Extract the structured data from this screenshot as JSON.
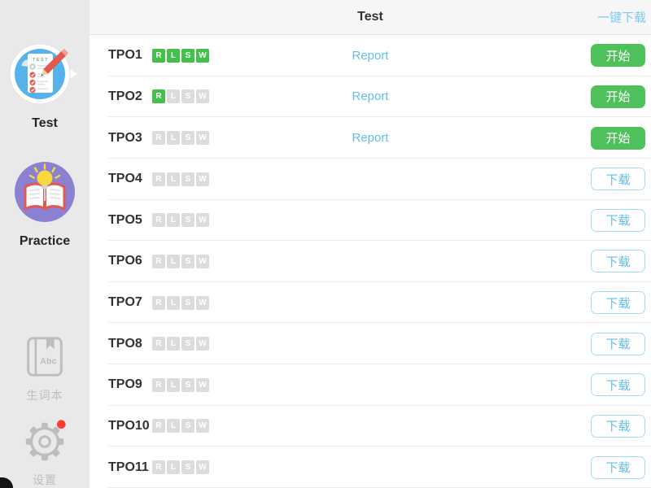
{
  "header": {
    "title": "Test",
    "download_all": "一键下载"
  },
  "sidebar": {
    "items": [
      {
        "id": "test",
        "label": "Test",
        "icon": "test-checklist-icon",
        "icon_text": "TEST",
        "selected": true
      },
      {
        "id": "practice",
        "label": "Practice",
        "icon": "practice-book-bulb-icon"
      },
      {
        "id": "wordbook",
        "label": "生词本",
        "icon": "wordbook-icon",
        "icon_text": "Abc"
      },
      {
        "id": "settings",
        "label": "设置",
        "icon": "gear-icon",
        "has_notification_dot": true
      }
    ]
  },
  "rows": [
    {
      "label": "TPO1",
      "badges": [
        {
          "letter": "R",
          "done": true
        },
        {
          "letter": "L",
          "done": true
        },
        {
          "letter": "S",
          "done": true
        },
        {
          "letter": "W",
          "done": true
        }
      ],
      "report": "Report",
      "action": {
        "type": "start",
        "label": "开始"
      }
    },
    {
      "label": "TPO2",
      "badges": [
        {
          "letter": "R",
          "done": true
        },
        {
          "letter": "L",
          "done": false
        },
        {
          "letter": "S",
          "done": false
        },
        {
          "letter": "W",
          "done": false
        }
      ],
      "report": "Report",
      "action": {
        "type": "start",
        "label": "开始"
      }
    },
    {
      "label": "TPO3",
      "badges": [
        {
          "letter": "R",
          "done": false
        },
        {
          "letter": "L",
          "done": false
        },
        {
          "letter": "S",
          "done": false
        },
        {
          "letter": "W",
          "done": false
        }
      ],
      "report": "Report",
      "action": {
        "type": "start",
        "label": "开始"
      }
    },
    {
      "label": "TPO4",
      "badges": [
        {
          "letter": "R",
          "done": false
        },
        {
          "letter": "L",
          "done": false
        },
        {
          "letter": "S",
          "done": false
        },
        {
          "letter": "W",
          "done": false
        }
      ],
      "report": null,
      "action": {
        "type": "download",
        "label": "下载"
      }
    },
    {
      "label": "TPO5",
      "badges": [
        {
          "letter": "R",
          "done": false
        },
        {
          "letter": "L",
          "done": false
        },
        {
          "letter": "S",
          "done": false
        },
        {
          "letter": "W",
          "done": false
        }
      ],
      "report": null,
      "action": {
        "type": "download",
        "label": "下载"
      }
    },
    {
      "label": "TPO6",
      "badges": [
        {
          "letter": "R",
          "done": false
        },
        {
          "letter": "L",
          "done": false
        },
        {
          "letter": "S",
          "done": false
        },
        {
          "letter": "W",
          "done": false
        }
      ],
      "report": null,
      "action": {
        "type": "download",
        "label": "下载"
      }
    },
    {
      "label": "TPO7",
      "badges": [
        {
          "letter": "R",
          "done": false
        },
        {
          "letter": "L",
          "done": false
        },
        {
          "letter": "S",
          "done": false
        },
        {
          "letter": "W",
          "done": false
        }
      ],
      "report": null,
      "action": {
        "type": "download",
        "label": "下载"
      }
    },
    {
      "label": "TPO8",
      "badges": [
        {
          "letter": "R",
          "done": false
        },
        {
          "letter": "L",
          "done": false
        },
        {
          "letter": "S",
          "done": false
        },
        {
          "letter": "W",
          "done": false
        }
      ],
      "report": null,
      "action": {
        "type": "download",
        "label": "下载"
      }
    },
    {
      "label": "TPO9",
      "badges": [
        {
          "letter": "R",
          "done": false
        },
        {
          "letter": "L",
          "done": false
        },
        {
          "letter": "S",
          "done": false
        },
        {
          "letter": "W",
          "done": false
        }
      ],
      "report": null,
      "action": {
        "type": "download",
        "label": "下载"
      }
    },
    {
      "label": "TPO10",
      "badges": [
        {
          "letter": "R",
          "done": false
        },
        {
          "letter": "L",
          "done": false
        },
        {
          "letter": "S",
          "done": false
        },
        {
          "letter": "W",
          "done": false
        }
      ],
      "report": null,
      "action": {
        "type": "download",
        "label": "下载"
      }
    },
    {
      "label": "TPO11",
      "badges": [
        {
          "letter": "R",
          "done": false
        },
        {
          "letter": "L",
          "done": false
        },
        {
          "letter": "S",
          "done": false
        },
        {
          "letter": "W",
          "done": false
        }
      ],
      "report": null,
      "action": {
        "type": "download",
        "label": "下载"
      }
    }
  ],
  "colors": {
    "accent_green": "#4fc15a",
    "link_blue": "#62bdec",
    "link_blue_light": "#7bcaf2",
    "badge_green": "#43c14c",
    "badge_gray": "#dcdcdc",
    "download_border_blue": "#a5daf5"
  }
}
